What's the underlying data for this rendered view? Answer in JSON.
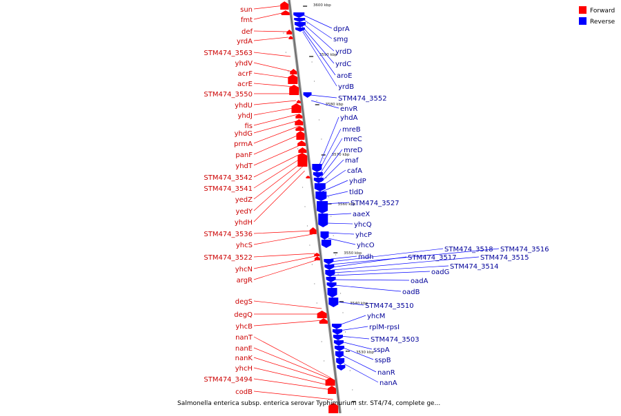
{
  "legend": {
    "forward": {
      "label": "Forward",
      "color": "#ff0000"
    },
    "reverse": {
      "label": "Reverse",
      "color": "#0000ff"
    }
  },
  "caption": "Salmonella enterica subsp. enterica serovar Typhimurium str. ST4/74, complete ge...",
  "kbp_ticks": [
    "3600 kbp",
    "3590 kbp",
    "3580 kbp",
    "3570 kbp",
    "3560 kbp",
    "3550 kbp",
    "3540 kbp",
    "3530 kbp"
  ],
  "forward_genes": [
    "sun",
    "fmt",
    "def",
    "yrdA",
    "STM474_3563",
    "yhdV",
    "acrF",
    "acrE",
    "STM474_3550",
    "yhdU",
    "yhdJ",
    "fis",
    "yhdG",
    "prmA",
    "panF",
    "yhdT",
    "STM474_3542",
    "STM474_3541",
    "yedZ",
    "yedY",
    "yhdH",
    "STM474_3536",
    "yhcS",
    "STM474_3522",
    "yhcN",
    "argR",
    "degS",
    "degQ",
    "yhcB",
    "nanT",
    "nanE",
    "nanK",
    "yhcH",
    "STM474_3494",
    "codB"
  ],
  "reverse_genes": [
    "dprA",
    "smg",
    "yrdD",
    "yrdC",
    "aroE",
    "yrdB",
    "STM474_3552",
    "envR",
    "yhdA",
    "mreB",
    "mreC",
    "mreD",
    "maf",
    "cafA",
    "yhdP",
    "tldD",
    "STM474_3527",
    "aaeX",
    "yhcQ",
    "yhcP",
    "yhcO",
    "mdh",
    "STM474_3518",
    "STM474_3516",
    "STM474_3517",
    "STM474_3515",
    "STM474_3514",
    "oadG",
    "oadA",
    "oadB",
    "STM474_3510",
    "yhcM",
    "rplM-rpsI",
    "STM474_3503",
    "sspA",
    "sspB",
    "nanR",
    "nanA"
  ]
}
